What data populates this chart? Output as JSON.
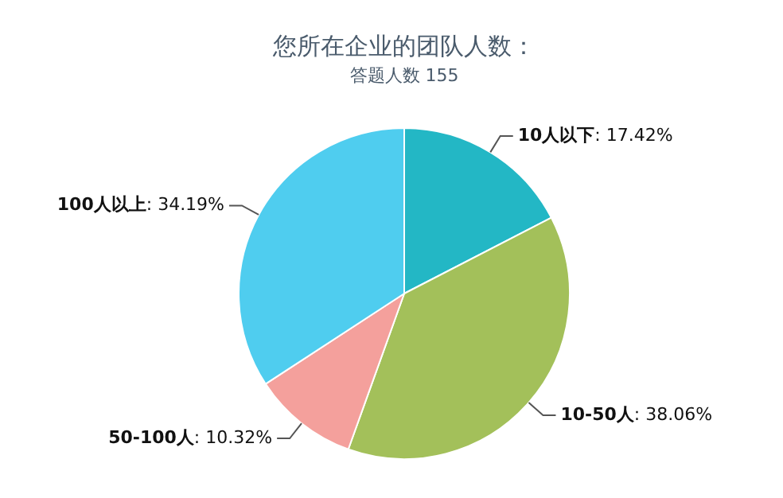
{
  "chart_data": {
    "type": "pie",
    "title": "您所在企业的团队人数：",
    "subtitle": "答题人数 155",
    "categories": [
      "10人以下",
      "10-50人",
      "50-100人",
      "100人以上"
    ],
    "values": [
      17.42,
      38.06,
      10.32,
      34.19
    ],
    "value_labels": [
      ": 17.42%",
      ": 38.06%",
      ": 10.32%",
      ": 34.19%"
    ],
    "colors": [
      "#23b7c5",
      "#a3c05a",
      "#f4a09c",
      "#4fcdef"
    ],
    "legend": false
  }
}
